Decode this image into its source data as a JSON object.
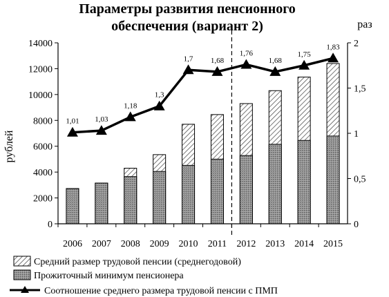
{
  "chart_data": {
    "type": "bar",
    "title": [
      "Параметры развития пенсионного",
      "обеспечения (вариант 2)"
    ],
    "categories": [
      "2006",
      "2007",
      "2008",
      "2009",
      "2010",
      "2011",
      "2012",
      "2013",
      "2014",
      "2015"
    ],
    "series": [
      {
        "name": "Средний размер трудовой пенсии (среднегодовой)",
        "kind": "bar-overlay",
        "pattern": "diagonal-hatch",
        "values": [
          2730,
          3150,
          4300,
          5350,
          7700,
          8450,
          9300,
          10300,
          11350,
          12400
        ]
      },
      {
        "name": "Прожиточный минимум пенсионера",
        "kind": "bar",
        "pattern": "stipple-gray",
        "values": [
          2720,
          3150,
          3650,
          4050,
          4520,
          5000,
          5280,
          6150,
          6450,
          6790
        ]
      },
      {
        "name": "Соотношение среднего размера трудовой пенсии с ПМП",
        "kind": "line",
        "axis": "right",
        "marker": "triangle",
        "values": [
          1.01,
          1.03,
          1.18,
          1.3,
          1.7,
          1.68,
          1.76,
          1.68,
          1.75,
          1.83
        ],
        "labels": [
          "1,01",
          "1,03",
          "1,18",
          "1,3",
          "1,7",
          "1,68",
          "1,76",
          "1,68",
          "1,75",
          "1,83"
        ]
      }
    ],
    "ylabel": "рублей",
    "y2label": "раз",
    "ylim": [
      0,
      14000
    ],
    "yticks": [
      "0",
      "2000",
      "4000",
      "6000",
      "8000",
      "10000",
      "12000",
      "14000"
    ],
    "y2lim": [
      0,
      2
    ],
    "y2ticks": [
      "0",
      "0,5",
      "1",
      "1,5",
      "2"
    ],
    "divider_after_category": "2011",
    "grid": false,
    "legend_position": "bottom"
  }
}
